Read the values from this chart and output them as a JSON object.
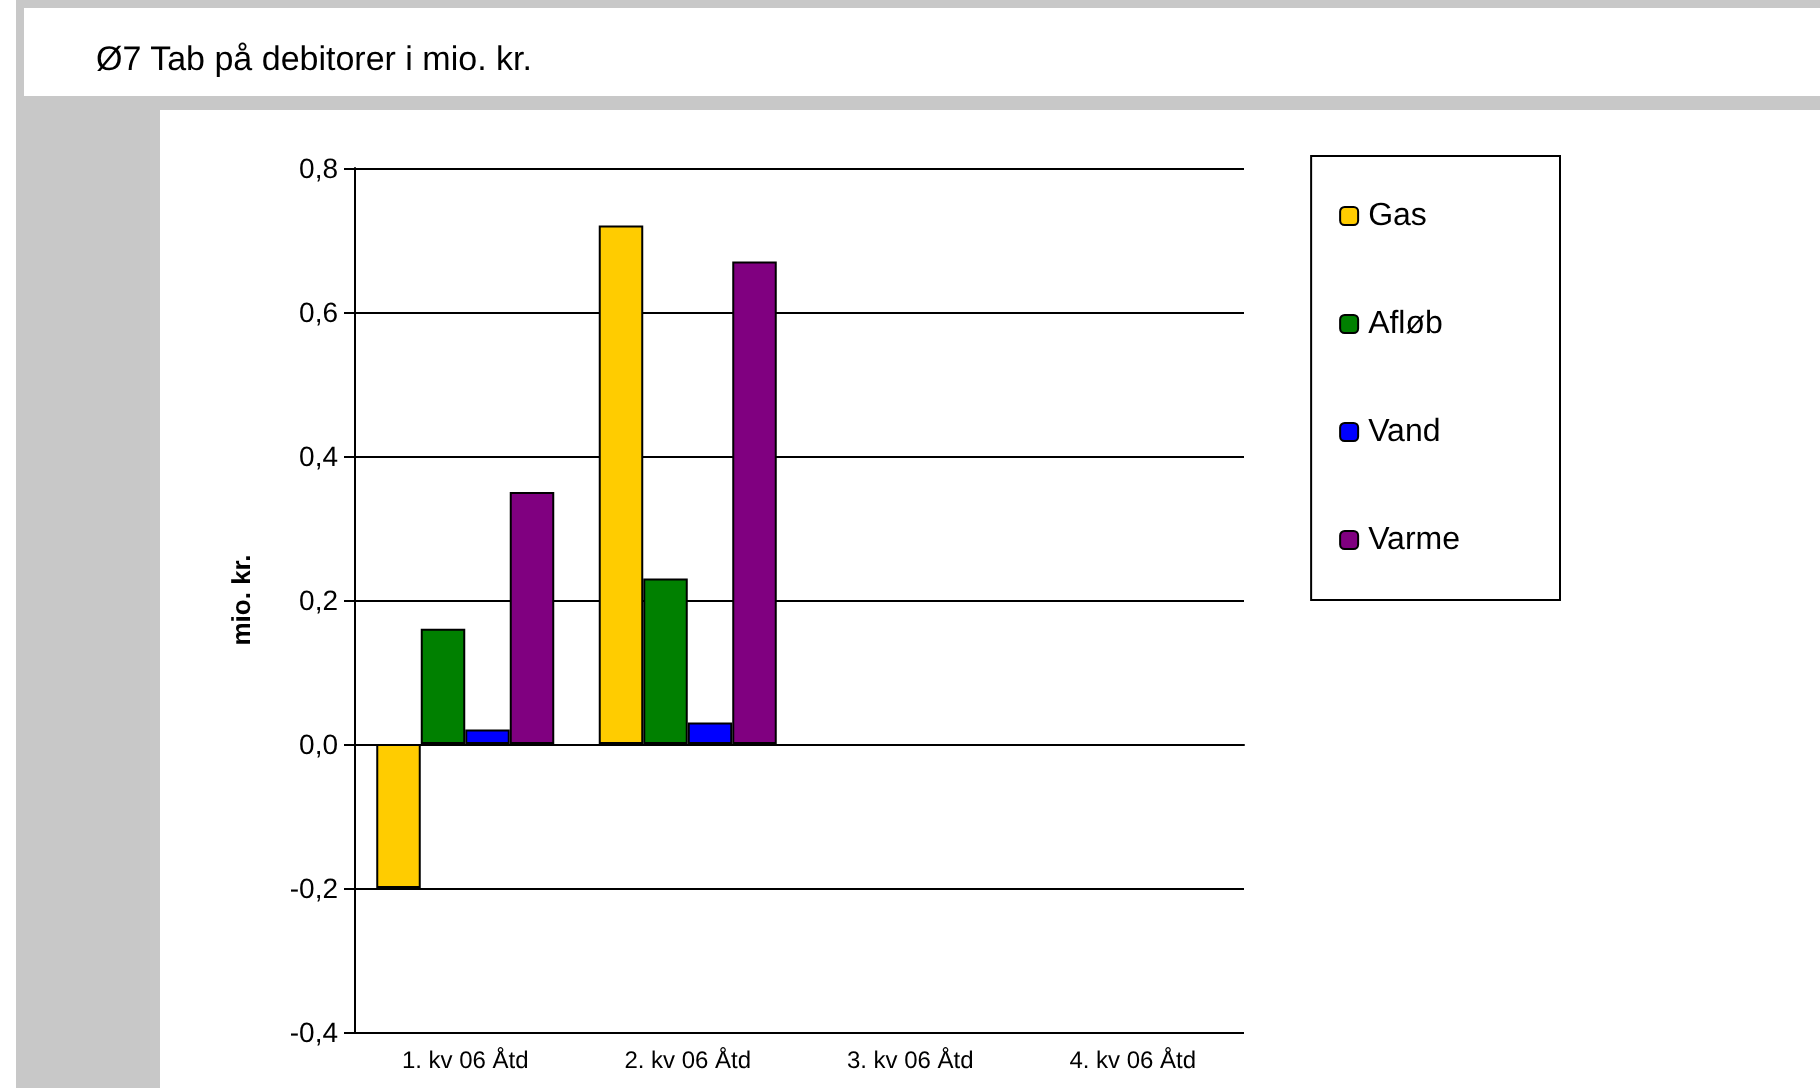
{
  "chart_data": {
    "type": "bar",
    "title": "Ø7 Tab på debitorer i mio. kr.",
    "ylabel": "mio. kr.",
    "categories": [
      "1. kv 06 Åtd",
      "2. kv 06 Åtd",
      "3. kv 06 Åtd",
      "4. kv 06 Åtd"
    ],
    "series": [
      {
        "name": "Gas",
        "color": "#ffcc00",
        "values": [
          -0.2,
          0.72,
          null,
          null
        ]
      },
      {
        "name": "Afløb",
        "color": "#008000",
        "values": [
          0.16,
          0.23,
          null,
          null
        ]
      },
      {
        "name": "Vand",
        "color": "#0000ff",
        "values": [
          0.02,
          0.03,
          null,
          null
        ]
      },
      {
        "name": "Varme",
        "color": "#800080",
        "values": [
          0.35,
          0.67,
          null,
          null
        ]
      }
    ],
    "ylim": [
      -0.4,
      0.8
    ],
    "yticks": [
      {
        "value": -0.4,
        "label": "-0,4"
      },
      {
        "value": -0.2,
        "label": "-0,2"
      },
      {
        "value": 0,
        "label": "0,0"
      },
      {
        "value": 0.2,
        "label": "0,2"
      },
      {
        "value": 0.4,
        "label": "0,4"
      },
      {
        "value": 0.6,
        "label": "0,6"
      },
      {
        "value": 0.8,
        "label": "0,8"
      }
    ],
    "grid": "y",
    "legend": "right"
  }
}
